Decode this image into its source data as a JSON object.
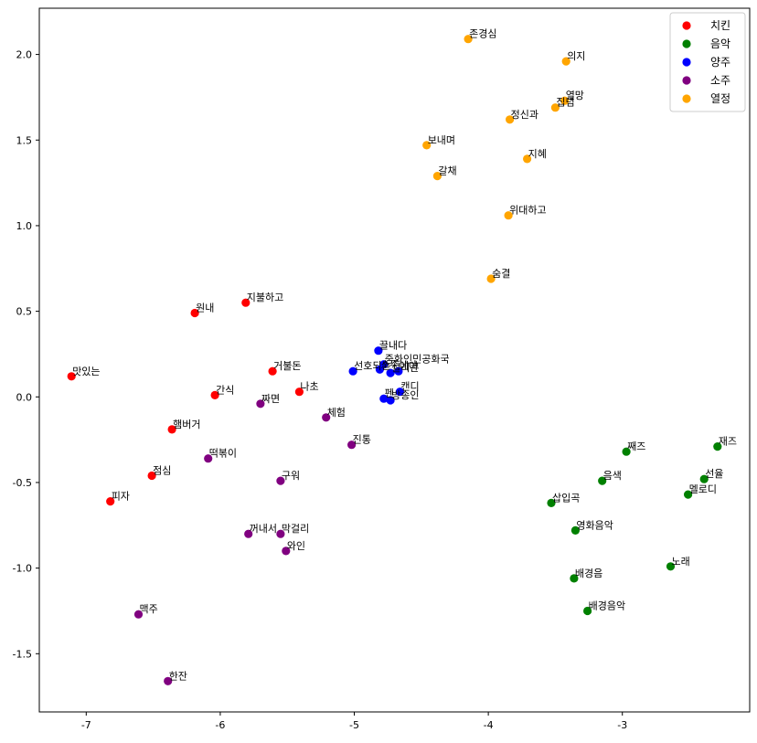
{
  "chart_data": {
    "type": "scatter",
    "xlim": [
      -7.35,
      -2.05
    ],
    "ylim": [
      -1.84,
      2.27
    ],
    "xticks": [
      -7,
      -6,
      -5,
      -4,
      -3
    ],
    "yticks": [
      -1.5,
      -1.0,
      -0.5,
      0.0,
      0.5,
      1.0,
      1.5,
      2.0
    ],
    "xtick_labels": [
      "-7",
      "-6",
      "-5",
      "-4",
      "-3"
    ],
    "ytick_labels": [
      "-1.5",
      "-1.0",
      "-0.5",
      "0.0",
      "0.5",
      "1.0",
      "1.5",
      "2.0"
    ],
    "grid": false,
    "legend_position": "top-right",
    "series": [
      {
        "name": "치킨",
        "color": "#ff0000",
        "points": [
          {
            "label": "맛있는",
            "x": -7.11,
            "y": 0.12
          },
          {
            "label": "피자",
            "x": -6.82,
            "y": -0.61
          },
          {
            "label": "점심",
            "x": -6.51,
            "y": -0.46
          },
          {
            "label": "햄버거",
            "x": -6.36,
            "y": -0.19
          },
          {
            "label": "원내",
            "x": -6.19,
            "y": 0.49
          },
          {
            "label": "간식",
            "x": -6.04,
            "y": 0.01
          },
          {
            "label": "지불하고",
            "x": -5.81,
            "y": 0.55
          },
          {
            "label": "거불돈",
            "x": -5.61,
            "y": 0.15
          },
          {
            "label": "나초",
            "x": -5.41,
            "y": 0.03
          }
        ]
      },
      {
        "name": "음악",
        "color": "#008000",
        "points": [
          {
            "label": "재즈",
            "x": -2.29,
            "y": -0.29
          },
          {
            "label": "선율",
            "x": -2.39,
            "y": -0.48
          },
          {
            "label": "멜로디",
            "x": -2.51,
            "y": -0.57
          },
          {
            "label": "노래",
            "x": -2.64,
            "y": -0.99
          },
          {
            "label": "째즈",
            "x": -2.97,
            "y": -0.32
          },
          {
            "label": "음색",
            "x": -3.15,
            "y": -0.49
          },
          {
            "label": "배경음악",
            "x": -3.26,
            "y": -1.25
          },
          {
            "label": "영화음악",
            "x": -3.35,
            "y": -0.78
          },
          {
            "label": "배경음",
            "x": -3.36,
            "y": -1.06
          },
          {
            "label": "삽입곡",
            "x": -3.53,
            "y": -0.62
          }
        ]
      },
      {
        "name": "양주",
        "color": "#0000ff",
        "points": [
          {
            "label": "끌내다",
            "x": -4.82,
            "y": 0.27
          },
          {
            "label": "선호되는",
            "x": -5.01,
            "y": 0.15
          },
          {
            "label": "중화인민공화국",
            "x": -4.78,
            "y": 0.19
          },
          {
            "label": "소주",
            "x": -4.81,
            "y": 0.16
          },
          {
            "label": "실리콘",
            "x": -4.73,
            "y": 0.14
          },
          {
            "label": "에어",
            "x": -4.67,
            "y": 0.15
          },
          {
            "label": "캔디",
            "x": -4.66,
            "y": 0.03
          },
          {
            "label": "펜",
            "x": -4.78,
            "y": -0.01
          },
          {
            "label": "방송인",
            "x": -4.73,
            "y": -0.02
          }
        ]
      },
      {
        "name": "소주",
        "color": "#800080",
        "points": [
          {
            "label": "맥주",
            "x": -6.61,
            "y": -1.27
          },
          {
            "label": "한잔",
            "x": -6.39,
            "y": -1.66
          },
          {
            "label": "떡볶이",
            "x": -6.09,
            "y": -0.36
          },
          {
            "label": "꺼내서",
            "x": -5.79,
            "y": -0.8
          },
          {
            "label": "짜면",
            "x": -5.7,
            "y": -0.04
          },
          {
            "label": "구워",
            "x": -5.55,
            "y": -0.49
          },
          {
            "label": "막걸리",
            "x": -5.55,
            "y": -0.8
          },
          {
            "label": "와인",
            "x": -5.51,
            "y": -0.9
          },
          {
            "label": "체험",
            "x": -5.21,
            "y": -0.12
          },
          {
            "label": "진통",
            "x": -5.02,
            "y": -0.28
          }
        ]
      },
      {
        "name": "열정",
        "color": "#ffa500",
        "points": [
          {
            "label": "존경심",
            "x": -4.15,
            "y": 2.09
          },
          {
            "label": "의지",
            "x": -3.42,
            "y": 1.96
          },
          {
            "label": "열망",
            "x": -3.43,
            "y": 1.73
          },
          {
            "label": "집념",
            "x": -3.5,
            "y": 1.69
          },
          {
            "label": "정신과",
            "x": -3.84,
            "y": 1.62
          },
          {
            "label": "보내며",
            "x": -4.46,
            "y": 1.47
          },
          {
            "label": "지혜",
            "x": -3.71,
            "y": 1.39
          },
          {
            "label": "갈채",
            "x": -4.38,
            "y": 1.29
          },
          {
            "label": "위대하고",
            "x": -3.85,
            "y": 1.06
          },
          {
            "label": "숨결",
            "x": -3.98,
            "y": 0.69
          }
        ]
      }
    ]
  }
}
